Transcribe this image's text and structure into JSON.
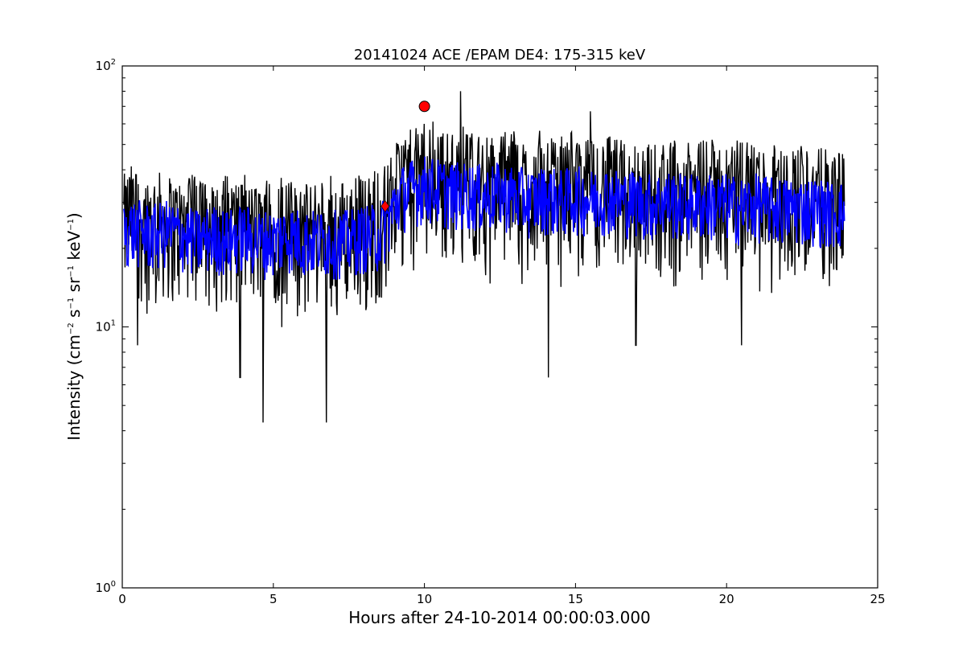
{
  "chart_data": {
    "type": "line",
    "title": "20141024 ACE /EPAM DE4: 175-315 keV",
    "xlabel": "Hours after 24-10-2014 00:00:03.000",
    "ylabel_main": "Intensity (cm",
    "ylabel_parts": [
      "−2",
      " s",
      "−1",
      " sr",
      "−1",
      " keV",
      "−1",
      ")"
    ],
    "xlim": [
      0,
      25
    ],
    "ylim": [
      1,
      100
    ],
    "yscale": "log",
    "grid": false,
    "xticks": [
      0,
      5,
      10,
      15,
      20,
      25
    ],
    "xtick_labels": [
      "0",
      "5",
      "10",
      "15",
      "20",
      "25"
    ],
    "yticks": [
      1,
      10,
      100
    ],
    "ytick_labels": [
      {
        "base": "10",
        "exp": "0"
      },
      {
        "base": "10",
        "exp": "1"
      },
      {
        "base": "10",
        "exp": "2"
      }
    ],
    "series": [
      {
        "color": "#000000",
        "description": "raw intensity",
        "x": [
          0.05,
          0.3,
          0.6,
          1.0,
          1.5,
          2.0,
          2.5,
          3.0,
          3.5,
          3.9,
          4.6,
          5.0,
          5.5,
          6.0,
          6.5,
          6.7,
          7.0,
          7.5,
          8.0,
          8.5,
          8.8,
          9.2,
          9.6,
          10.0,
          10.5,
          11.0,
          11.2,
          11.5,
          12.0,
          12.5,
          13.0,
          13.5,
          14.0,
          14.1,
          14.5,
          15.0,
          15.5,
          16.0,
          16.5,
          17.0,
          17.5,
          18.0,
          18.5,
          19.0,
          19.5,
          20.0,
          20.5,
          21.0,
          21.5,
          22.0,
          22.5,
          23.0,
          23.5,
          23.9
        ],
        "y": [
          22,
          24,
          22,
          23,
          22,
          21,
          22,
          20,
          22,
          21,
          20,
          22,
          21,
          20,
          21,
          20,
          21,
          21,
          22,
          22,
          25,
          31,
          33,
          34,
          33,
          32,
          35,
          31,
          32,
          31,
          32,
          30,
          31,
          30,
          31,
          31,
          30,
          31,
          30,
          30,
          29,
          30,
          29,
          29,
          30,
          29,
          28,
          29,
          28,
          28,
          29,
          28,
          27,
          27
        ],
        "noise_low": [
          0.6,
          0.55
        ],
        "spikes": [
          {
            "x": 0.5,
            "y": 8.5
          },
          {
            "x": 3.9,
            "y": 6.4
          },
          {
            "x": 4.65,
            "y": 4.3
          },
          {
            "x": 6.75,
            "y": 4.3
          },
          {
            "x": 11.2,
            "y": 80
          },
          {
            "x": 14.1,
            "y": 6.4
          },
          {
            "x": 15.5,
            "y": 67
          },
          {
            "x": 17.0,
            "y": 8.5
          },
          {
            "x": 20.5,
            "y": 8.5
          },
          {
            "x": 10.0,
            "y": 60
          }
        ]
      },
      {
        "color": "#0000ff",
        "description": "smoothed intensity",
        "x": [
          0.05,
          0.5,
          1.0,
          1.5,
          2.0,
          2.5,
          3.0,
          3.5,
          4.0,
          4.5,
          5.0,
          5.5,
          6.0,
          6.5,
          7.0,
          7.5,
          8.0,
          8.5,
          8.8,
          9.2,
          9.6,
          10.0,
          10.5,
          11.0,
          11.5,
          12.0,
          12.5,
          13.0,
          13.5,
          14.0,
          14.5,
          15.0,
          15.5,
          16.0,
          16.5,
          17.0,
          17.5,
          18.0,
          18.5,
          19.0,
          19.5,
          20.0,
          20.5,
          21.0,
          21.5,
          22.0,
          22.5,
          23.0,
          23.5,
          23.9
        ],
        "y": [
          23,
          23,
          22,
          23,
          22,
          21,
          22,
          21,
          22,
          21,
          21,
          22,
          21,
          21,
          21,
          21,
          22,
          22,
          25,
          31,
          33,
          34,
          33,
          32,
          32,
          31,
          32,
          31,
          30,
          31,
          30,
          31,
          30,
          31,
          30,
          30,
          29,
          30,
          29,
          29,
          29,
          29,
          28,
          29,
          28,
          28,
          28,
          28,
          27,
          27
        ]
      }
    ],
    "markers": [
      {
        "shape": "circle",
        "color": "#ff0000",
        "x": 10.0,
        "y": 70
      },
      {
        "shape": "diamond",
        "color": "#ff0000",
        "x": 8.7,
        "y": 29
      }
    ]
  }
}
